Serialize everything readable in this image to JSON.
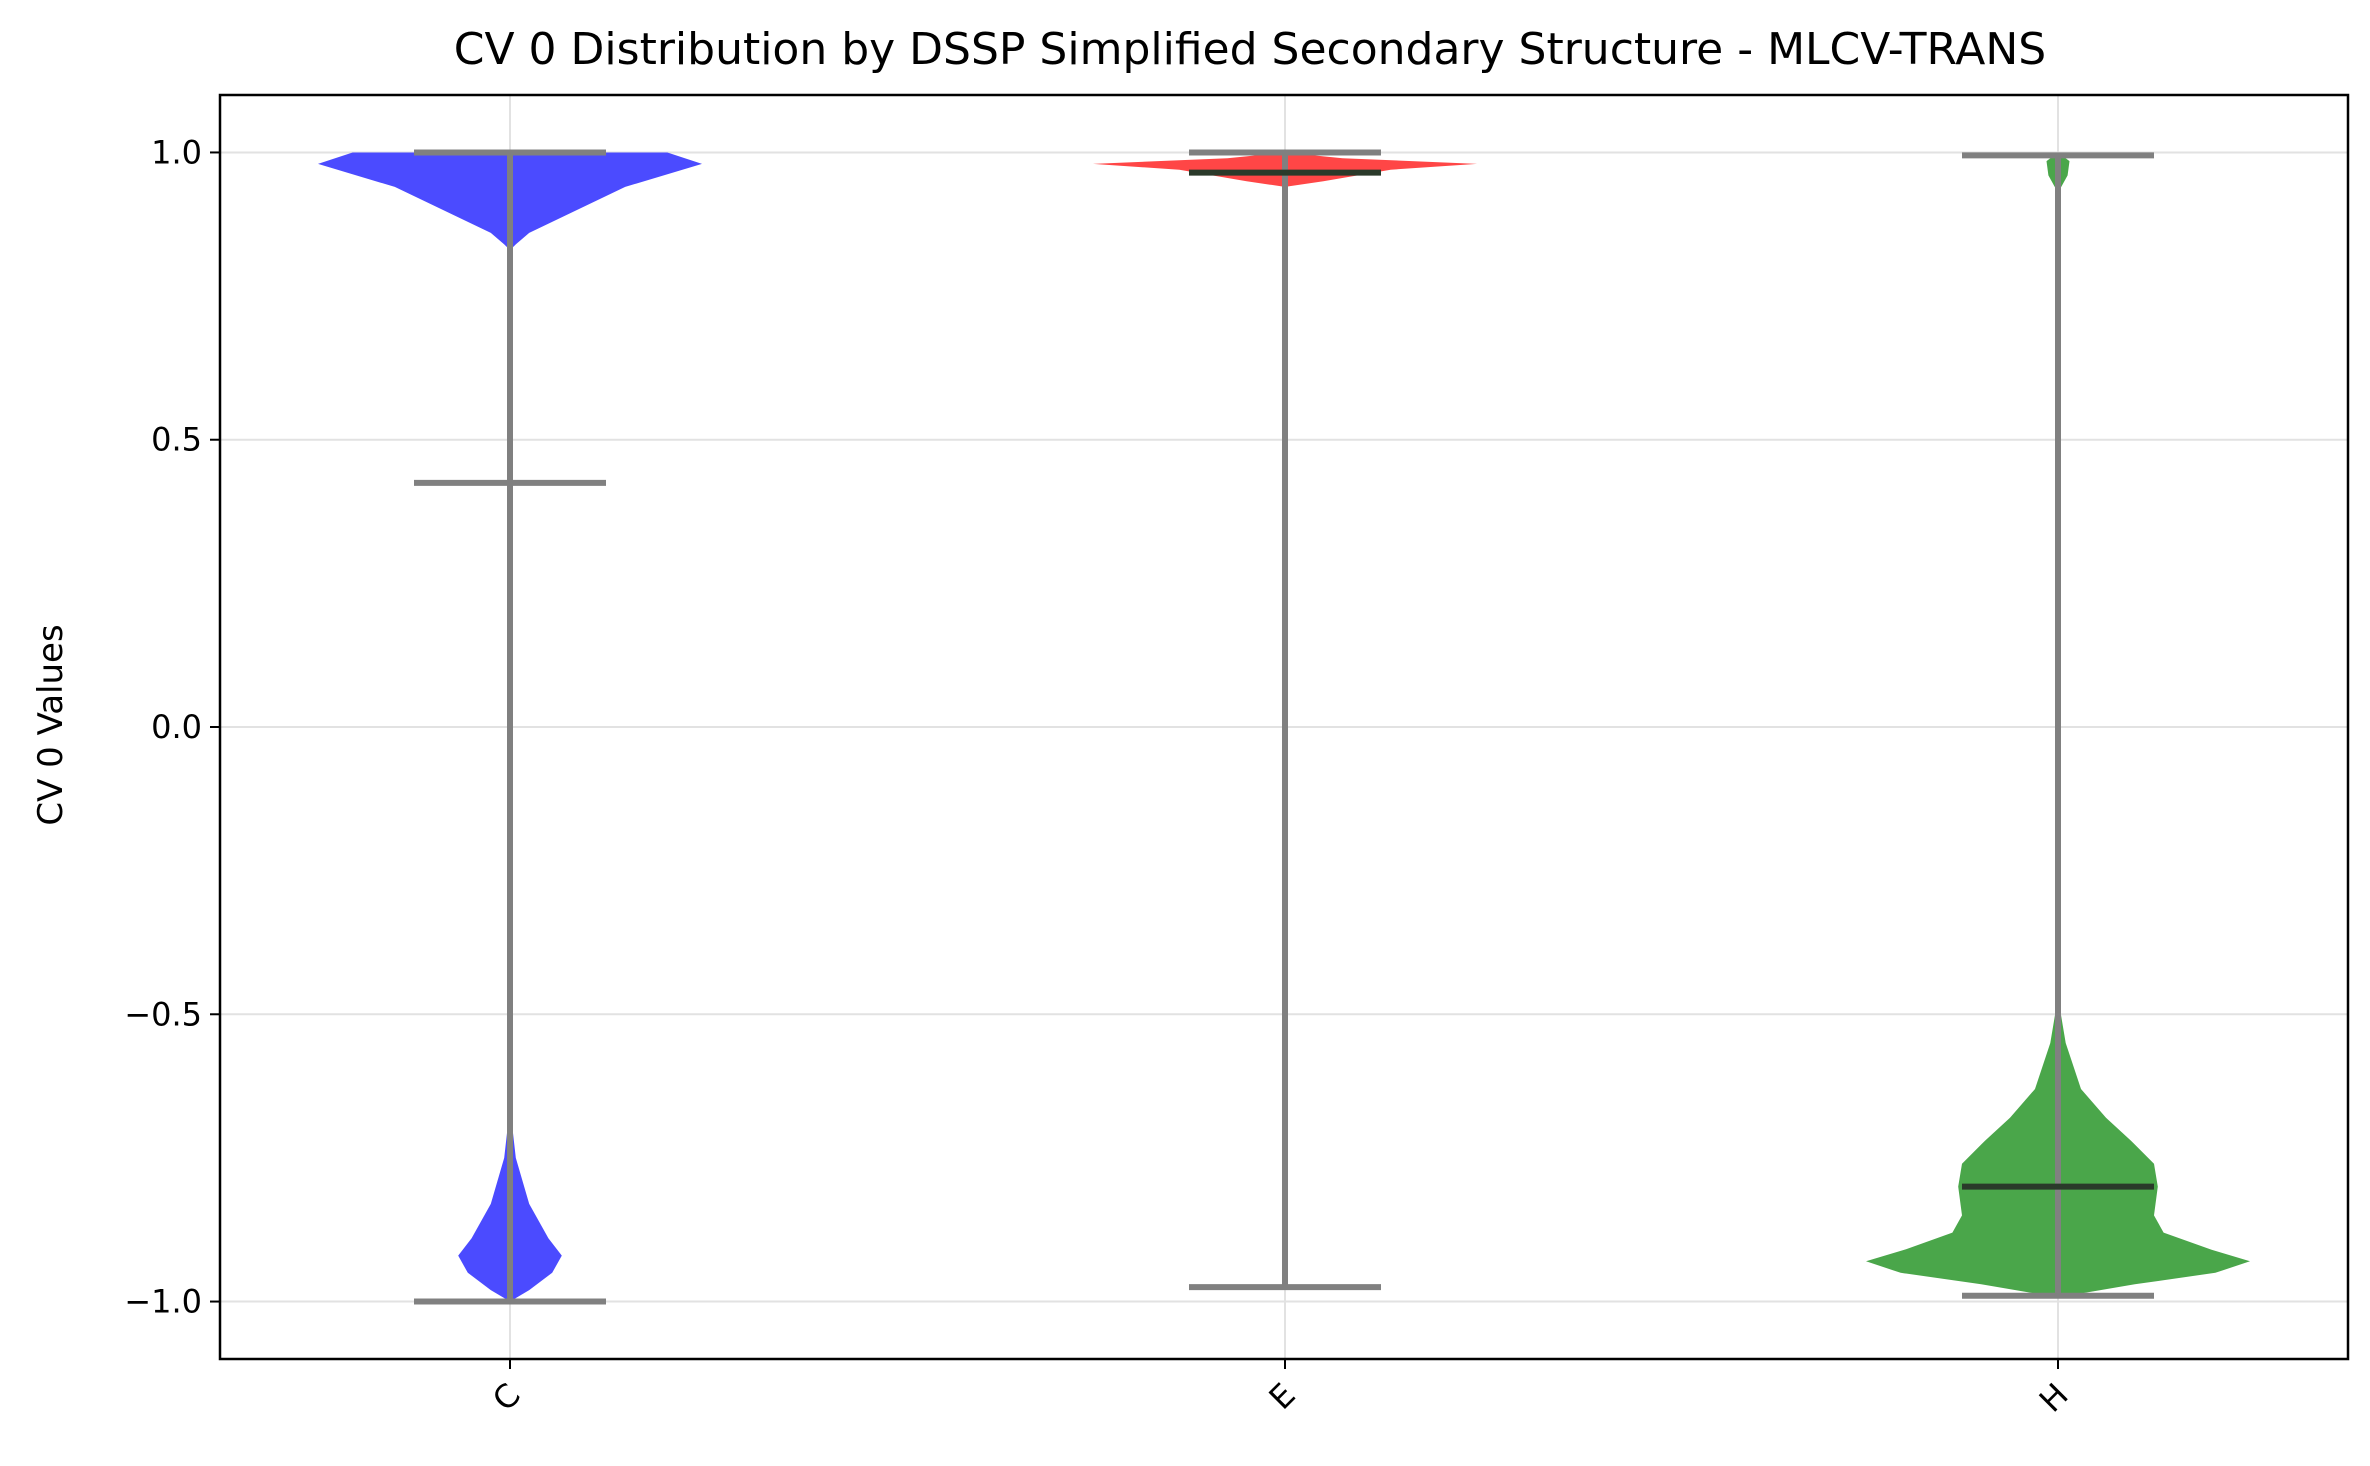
{
  "chart_data": {
    "type": "violin",
    "title": "CV 0 Distribution by DSSP Simplified Secondary Structure - MLCV-TRANS",
    "xlabel": "",
    "ylabel": "CV 0 Values",
    "categories": [
      "C",
      "E",
      "H"
    ],
    "ylim": [
      -1.1,
      1.1
    ],
    "yticks": [
      1.0,
      0.5,
      0.0,
      -0.5,
      -1.0
    ],
    "ytick_labels": [
      "1.0",
      "0.5",
      "0.0",
      "−0.5",
      "−1.0"
    ],
    "grid": true,
    "xtick_rotation_deg": -45,
    "colors": {
      "C": "#4b4bff",
      "E": "#ff4646",
      "H": "#4aa64a",
      "whisker": "#808080",
      "median": "#2a3a2a"
    },
    "series": [
      {
        "category": "C",
        "min": -1.0,
        "max": 1.0,
        "median": 0.425,
        "density_profile": [
          [
            1.0,
            0.82
          ],
          [
            0.98,
            1.0
          ],
          [
            0.94,
            0.6
          ],
          [
            0.9,
            0.35
          ],
          [
            0.86,
            0.1
          ],
          [
            0.84,
            0.03
          ],
          [
            0.83,
            0.0
          ],
          [
            -0.66,
            0.0
          ],
          [
            -0.75,
            0.03
          ],
          [
            -0.83,
            0.1
          ],
          [
            -0.89,
            0.2
          ],
          [
            -0.92,
            0.27
          ],
          [
            -0.95,
            0.22
          ],
          [
            -0.98,
            0.1
          ],
          [
            -1.0,
            0.0
          ]
        ]
      },
      {
        "category": "E",
        "min": -0.975,
        "max": 1.0,
        "median": 0.965,
        "density_profile": [
          [
            1.0,
            0.0
          ],
          [
            0.99,
            0.3
          ],
          [
            0.98,
            1.0
          ],
          [
            0.97,
            0.55
          ],
          [
            0.95,
            0.2
          ],
          [
            0.94,
            0.0
          ]
        ]
      },
      {
        "category": "H",
        "min": -0.99,
        "max": 0.995,
        "median": -0.8,
        "density_profile": [
          [
            1.0,
            0.0
          ],
          [
            0.985,
            0.06
          ],
          [
            0.96,
            0.05
          ],
          [
            0.93,
            0.0
          ],
          [
            -0.47,
            0.0
          ],
          [
            -0.55,
            0.04
          ],
          [
            -0.63,
            0.12
          ],
          [
            -0.68,
            0.25
          ],
          [
            -0.72,
            0.38
          ],
          [
            -0.76,
            0.5
          ],
          [
            -0.8,
            0.52
          ],
          [
            -0.85,
            0.5
          ],
          [
            -0.88,
            0.55
          ],
          [
            -0.91,
            0.8
          ],
          [
            -0.93,
            1.0
          ],
          [
            -0.95,
            0.82
          ],
          [
            -0.97,
            0.4
          ],
          [
            -0.99,
            0.05
          ]
        ]
      }
    ]
  }
}
